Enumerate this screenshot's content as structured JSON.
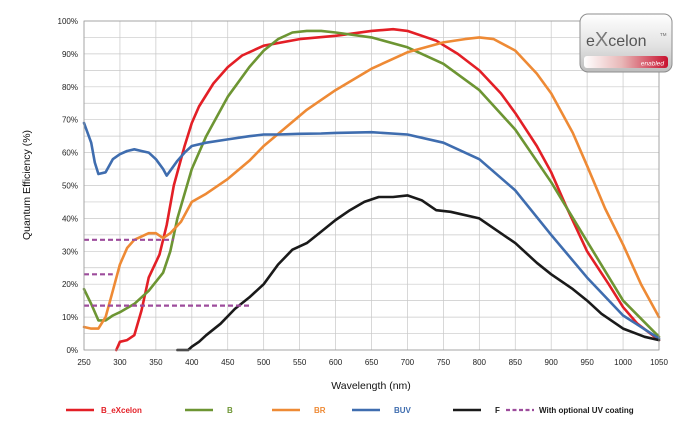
{
  "chart_data": {
    "type": "line",
    "xlabel": "Wavelength (nm)",
    "ylabel": "Quantum Efficiency (%)",
    "xlim": [
      250,
      1050
    ],
    "ylim": [
      0,
      100
    ],
    "x_ticks": [
      250,
      300,
      350,
      400,
      450,
      500,
      550,
      600,
      650,
      700,
      750,
      800,
      850,
      900,
      950,
      1000,
      1050
    ],
    "y_ticks": [
      0,
      10,
      20,
      30,
      40,
      50,
      60,
      70,
      80,
      90,
      100
    ],
    "x_tick_labels": [
      "250",
      "300",
      "350",
      "400",
      "450",
      "500",
      "550",
      "600",
      "650",
      "700",
      "750",
      "800",
      "850",
      "900",
      "950",
      "1000",
      "1050"
    ],
    "y_tick_labels": [
      "0%",
      "10%",
      "20%",
      "30%",
      "40%",
      "50%",
      "60%",
      "70%",
      "80%",
      "90%",
      "100%"
    ],
    "grid": true,
    "legend_position": "bottom",
    "series": [
      {
        "name": "B_eXcelon",
        "color": "#e31f26",
        "width": 2.6,
        "points": [
          [
            295,
            0
          ],
          [
            300,
            2.5
          ],
          [
            310,
            3
          ],
          [
            320,
            4.5
          ],
          [
            330,
            12
          ],
          [
            340,
            22
          ],
          [
            355,
            29
          ],
          [
            365,
            38
          ],
          [
            375,
            50
          ],
          [
            390,
            62
          ],
          [
            400,
            69
          ],
          [
            410,
            74
          ],
          [
            430,
            81
          ],
          [
            450,
            86
          ],
          [
            470,
            89.5
          ],
          [
            500,
            92.5
          ],
          [
            550,
            94.5
          ],
          [
            600,
            95.5
          ],
          [
            650,
            97
          ],
          [
            680,
            97.5
          ],
          [
            700,
            97
          ],
          [
            740,
            94
          ],
          [
            770,
            90
          ],
          [
            800,
            85
          ],
          [
            830,
            78
          ],
          [
            850,
            72
          ],
          [
            880,
            62
          ],
          [
            900,
            54
          ],
          [
            920,
            44
          ],
          [
            950,
            30
          ],
          [
            980,
            20
          ],
          [
            1000,
            13
          ],
          [
            1020,
            8
          ],
          [
            1050,
            3
          ]
        ]
      },
      {
        "name": "B",
        "color": "#6d9533",
        "width": 2.6,
        "points": [
          [
            250,
            18.5
          ],
          [
            260,
            14
          ],
          [
            270,
            9
          ],
          [
            280,
            9
          ],
          [
            290,
            10.5
          ],
          [
            300,
            11.5
          ],
          [
            320,
            14
          ],
          [
            340,
            18
          ],
          [
            360,
            23.5
          ],
          [
            370,
            30
          ],
          [
            380,
            40
          ],
          [
            400,
            55
          ],
          [
            420,
            65
          ],
          [
            450,
            77
          ],
          [
            480,
            86
          ],
          [
            500,
            91
          ],
          [
            520,
            94.5
          ],
          [
            540,
            96.5
          ],
          [
            560,
            97
          ],
          [
            580,
            97
          ],
          [
            600,
            96.5
          ],
          [
            650,
            95
          ],
          [
            700,
            92
          ],
          [
            750,
            87
          ],
          [
            800,
            79
          ],
          [
            850,
            67
          ],
          [
            900,
            51
          ],
          [
            950,
            33
          ],
          [
            1000,
            15
          ],
          [
            1050,
            4
          ]
        ]
      },
      {
        "name": "BR",
        "color": "#ee8a35",
        "width": 2.6,
        "points": [
          [
            250,
            7
          ],
          [
            260,
            6.5
          ],
          [
            270,
            6.5
          ],
          [
            280,
            10
          ],
          [
            290,
            18
          ],
          [
            300,
            26
          ],
          [
            310,
            31
          ],
          [
            320,
            33.5
          ],
          [
            340,
            35.5
          ],
          [
            350,
            35.5
          ],
          [
            360,
            34
          ],
          [
            370,
            35.5
          ],
          [
            385,
            39
          ],
          [
            400,
            45
          ],
          [
            420,
            47.5
          ],
          [
            450,
            52
          ],
          [
            480,
            57.5
          ],
          [
            500,
            62
          ],
          [
            530,
            67.5
          ],
          [
            560,
            73
          ],
          [
            600,
            79
          ],
          [
            650,
            85.5
          ],
          [
            700,
            90.5
          ],
          [
            750,
            93.5
          ],
          [
            780,
            94.5
          ],
          [
            800,
            95
          ],
          [
            820,
            94.5
          ],
          [
            850,
            91
          ],
          [
            880,
            84
          ],
          [
            900,
            78
          ],
          [
            930,
            66
          ],
          [
            950,
            56
          ],
          [
            975,
            43
          ],
          [
            1000,
            32
          ],
          [
            1025,
            20
          ],
          [
            1050,
            10
          ]
        ]
      },
      {
        "name": "BUV",
        "color": "#3f6daf",
        "width": 2.6,
        "points": [
          [
            250,
            69
          ],
          [
            260,
            63
          ],
          [
            265,
            57
          ],
          [
            270,
            53.5
          ],
          [
            280,
            54
          ],
          [
            290,
            58
          ],
          [
            300,
            59.5
          ],
          [
            310,
            60.5
          ],
          [
            320,
            61
          ],
          [
            330,
            60.5
          ],
          [
            340,
            60
          ],
          [
            350,
            58
          ],
          [
            360,
            55
          ],
          [
            365,
            53
          ],
          [
            375,
            56
          ],
          [
            380,
            57.5
          ],
          [
            390,
            60
          ],
          [
            400,
            62
          ],
          [
            420,
            63
          ],
          [
            450,
            64
          ],
          [
            480,
            65
          ],
          [
            500,
            65.5
          ],
          [
            520,
            65.5
          ],
          [
            550,
            65.7
          ],
          [
            580,
            65.8
          ],
          [
            600,
            66
          ],
          [
            650,
            66.2
          ],
          [
            700,
            65.5
          ],
          [
            750,
            63
          ],
          [
            800,
            58
          ],
          [
            850,
            48.5
          ],
          [
            900,
            35
          ],
          [
            950,
            22
          ],
          [
            1000,
            10.5
          ],
          [
            1050,
            3.5
          ]
        ]
      },
      {
        "name": "F",
        "color": "#1a1a1a",
        "width": 2.6,
        "points": [
          [
            380,
            0
          ],
          [
            395,
            0
          ],
          [
            400,
            1
          ],
          [
            410,
            2.5
          ],
          [
            420,
            4.5
          ],
          [
            440,
            8
          ],
          [
            460,
            12.5
          ],
          [
            480,
            16
          ],
          [
            500,
            20
          ],
          [
            520,
            26
          ],
          [
            540,
            30.5
          ],
          [
            560,
            32.5
          ],
          [
            580,
            36
          ],
          [
            600,
            39.5
          ],
          [
            620,
            42.5
          ],
          [
            640,
            45
          ],
          [
            660,
            46.5
          ],
          [
            680,
            46.5
          ],
          [
            700,
            47
          ],
          [
            720,
            45.5
          ],
          [
            740,
            42.5
          ],
          [
            760,
            42
          ],
          [
            800,
            40
          ],
          [
            820,
            37
          ],
          [
            850,
            32.5
          ],
          [
            880,
            26.5
          ],
          [
            900,
            23
          ],
          [
            930,
            18.5
          ],
          [
            950,
            15
          ],
          [
            970,
            11
          ],
          [
            1000,
            6.5
          ],
          [
            1030,
            4
          ],
          [
            1050,
            3
          ]
        ]
      },
      {
        "name": "With optional UV coating",
        "color": "#9d4c9c",
        "width": 2.2,
        "dashed": true,
        "segments": [
          [
            [
              250,
              33.5
            ],
            [
              375,
              33.5
            ]
          ],
          [
            [
              250,
              23
            ],
            [
              290,
              23
            ]
          ],
          [
            [
              250,
              13.5
            ],
            [
              480,
              13.5
            ]
          ]
        ]
      }
    ],
    "legend": [
      {
        "label": "B_eXcelon",
        "color": "#e31f26"
      },
      {
        "label": "B",
        "color": "#6d9533"
      },
      {
        "label": "BR",
        "color": "#ee8a35"
      },
      {
        "label": "BUV",
        "color": "#3f6daf"
      },
      {
        "label": "F",
        "color": "#1a1a1a"
      },
      {
        "label": "With optional UV coating",
        "color": "#9d4c9c",
        "dashed": true
      }
    ]
  },
  "logo": {
    "brand_lower": "e",
    "brand_big_x": "X",
    "brand_rest": "celon",
    "trademark": "TM",
    "tagline": "enabled"
  }
}
